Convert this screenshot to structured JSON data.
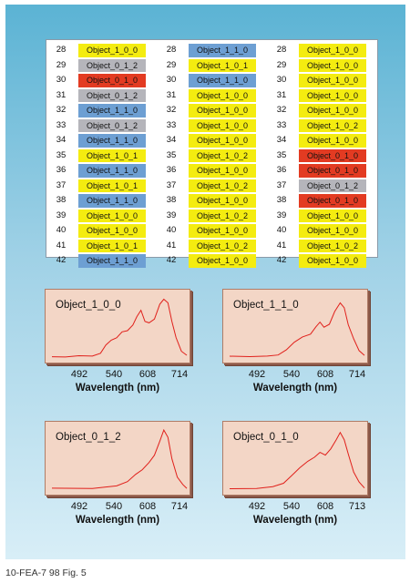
{
  "palette": {
    "yellow": "#f4ec10",
    "blue": "#6d9fd3",
    "gray": "#b5b5bb",
    "red": "#e33b22",
    "plot_bg": "#f3d6c6",
    "curve": "#e0201b"
  },
  "table": {
    "columns": [
      {
        "rows": [
          {
            "num": "28",
            "label": "Object_1_0_0",
            "color": "yellow"
          },
          {
            "num": "29",
            "label": "Object_0_1_2",
            "color": "gray"
          },
          {
            "num": "30",
            "label": "Object_0_1_0",
            "color": "red"
          },
          {
            "num": "31",
            "label": "Object_0_1_2",
            "color": "gray"
          },
          {
            "num": "32",
            "label": "Object_1_1_0",
            "color": "blue"
          },
          {
            "num": "33",
            "label": "Object_0_1_2",
            "color": "gray"
          },
          {
            "num": "34",
            "label": "Object_1_1_0",
            "color": "blue"
          },
          {
            "num": "35",
            "label": "Object_1_0_1",
            "color": "yellow"
          },
          {
            "num": "36",
            "label": "Object_1_1_0",
            "color": "blue"
          },
          {
            "num": "37",
            "label": "Object_1_0_1",
            "color": "yellow"
          },
          {
            "num": "38",
            "label": "Object_1_1_0",
            "color": "blue"
          },
          {
            "num": "39",
            "label": "Object_1_0_0",
            "color": "yellow"
          },
          {
            "num": "40",
            "label": "Object_1_0_0",
            "color": "yellow"
          },
          {
            "num": "41",
            "label": "Object_1_0_1",
            "color": "yellow"
          },
          {
            "num": "42",
            "label": "Object_1_1_0",
            "color": "blue"
          }
        ]
      },
      {
        "rows": [
          {
            "num": "28",
            "label": "Object_1_1_0",
            "color": "blue"
          },
          {
            "num": "29",
            "label": "Object_1_0_1",
            "color": "yellow"
          },
          {
            "num": "30",
            "label": "Object_1_1_0",
            "color": "blue"
          },
          {
            "num": "31",
            "label": "Object_1_0_0",
            "color": "yellow"
          },
          {
            "num": "32",
            "label": "Object_1_0_0",
            "color": "yellow"
          },
          {
            "num": "33",
            "label": "Object_1_0_0",
            "color": "yellow"
          },
          {
            "num": "34",
            "label": "Object_1_0_0",
            "color": "yellow"
          },
          {
            "num": "35",
            "label": "Object_1_0_2",
            "color": "yellow"
          },
          {
            "num": "36",
            "label": "Object_1_0_0",
            "color": "yellow"
          },
          {
            "num": "37",
            "label": "Object_1_0_2",
            "color": "yellow"
          },
          {
            "num": "38",
            "label": "Object_1_0_0",
            "color": "yellow"
          },
          {
            "num": "39",
            "label": "Object_1_0_2",
            "color": "yellow"
          },
          {
            "num": "40",
            "label": "Object_1_0_0",
            "color": "yellow"
          },
          {
            "num": "41",
            "label": "Object_1_0_2",
            "color": "yellow"
          },
          {
            "num": "42",
            "label": "Object_1_0_0",
            "color": "yellow"
          }
        ]
      },
      {
        "rows": [
          {
            "num": "28",
            "label": "Object_1_0_0",
            "color": "yellow"
          },
          {
            "num": "29",
            "label": "Object_1_0_0",
            "color": "yellow"
          },
          {
            "num": "30",
            "label": "Object_1_0_0",
            "color": "yellow"
          },
          {
            "num": "31",
            "label": "Object_1_0_0",
            "color": "yellow"
          },
          {
            "num": "32",
            "label": "Object_1_0_0",
            "color": "yellow"
          },
          {
            "num": "33",
            "label": "Object_1_0_2",
            "color": "yellow"
          },
          {
            "num": "34",
            "label": "Object_1_0_0",
            "color": "yellow"
          },
          {
            "num": "35",
            "label": "Object_0_1_0",
            "color": "red"
          },
          {
            "num": "36",
            "label": "Object_0_1_0",
            "color": "red"
          },
          {
            "num": "37",
            "label": "Object_0_1_2",
            "color": "gray"
          },
          {
            "num": "38",
            "label": "Object_0_1_0",
            "color": "red"
          },
          {
            "num": "39",
            "label": "Object_1_0_0",
            "color": "yellow"
          },
          {
            "num": "40",
            "label": "Object_1_0_0",
            "color": "yellow"
          },
          {
            "num": "41",
            "label": "Object_1_0_2",
            "color": "yellow"
          },
          {
            "num": "42",
            "label": "Object_1_0_0",
            "color": "yellow"
          }
        ]
      }
    ]
  },
  "spectra": [
    {
      "object_label": "Object_1_0_0",
      "ticks": [
        "492",
        "540",
        "608",
        "714"
      ],
      "xlabel": "Wavelength (nm)",
      "curve": [
        [
          0.0,
          0.02
        ],
        [
          0.1,
          0.02
        ],
        [
          0.2,
          0.03
        ],
        [
          0.3,
          0.04
        ],
        [
          0.36,
          0.08
        ],
        [
          0.4,
          0.2
        ],
        [
          0.44,
          0.3
        ],
        [
          0.48,
          0.32
        ],
        [
          0.52,
          0.42
        ],
        [
          0.56,
          0.45
        ],
        [
          0.6,
          0.52
        ],
        [
          0.63,
          0.68
        ],
        [
          0.66,
          0.76
        ],
        [
          0.69,
          0.6
        ],
        [
          0.72,
          0.56
        ],
        [
          0.76,
          0.64
        ],
        [
          0.8,
          0.86
        ],
        [
          0.83,
          0.96
        ],
        [
          0.86,
          0.88
        ],
        [
          0.89,
          0.6
        ],
        [
          0.92,
          0.32
        ],
        [
          0.96,
          0.12
        ],
        [
          1.0,
          0.04
        ]
      ]
    },
    {
      "object_label": "Object_1_1_0",
      "ticks": [
        "492",
        "540",
        "608",
        "714"
      ],
      "xlabel": "Wavelength (nm)",
      "curve": [
        [
          0.0,
          0.02
        ],
        [
          0.15,
          0.02
        ],
        [
          0.28,
          0.03
        ],
        [
          0.36,
          0.06
        ],
        [
          0.42,
          0.14
        ],
        [
          0.48,
          0.26
        ],
        [
          0.54,
          0.34
        ],
        [
          0.6,
          0.38
        ],
        [
          0.64,
          0.5
        ],
        [
          0.67,
          0.58
        ],
        [
          0.7,
          0.5
        ],
        [
          0.74,
          0.55
        ],
        [
          0.78,
          0.74
        ],
        [
          0.82,
          0.9
        ],
        [
          0.85,
          0.8
        ],
        [
          0.88,
          0.55
        ],
        [
          0.92,
          0.3
        ],
        [
          0.96,
          0.12
        ],
        [
          1.0,
          0.05
        ]
      ]
    },
    {
      "object_label": "Object_0_1_2",
      "ticks": [
        "492",
        "540",
        "608",
        "714"
      ],
      "xlabel": "Wavelength (nm)",
      "curve": [
        [
          0.0,
          0.02
        ],
        [
          0.3,
          0.03
        ],
        [
          0.4,
          0.05
        ],
        [
          0.48,
          0.08
        ],
        [
          0.56,
          0.14
        ],
        [
          0.62,
          0.26
        ],
        [
          0.67,
          0.34
        ],
        [
          0.72,
          0.44
        ],
        [
          0.76,
          0.56
        ],
        [
          0.8,
          0.8
        ],
        [
          0.83,
          0.96
        ],
        [
          0.86,
          0.86
        ],
        [
          0.89,
          0.5
        ],
        [
          0.93,
          0.22
        ],
        [
          0.97,
          0.08
        ],
        [
          1.0,
          0.04
        ]
      ]
    },
    {
      "object_label": "Object_0_1_0",
      "ticks": [
        "492",
        "540",
        "608",
        "713"
      ],
      "xlabel": "Wavelength (nm)",
      "curve": [
        [
          0.0,
          0.02
        ],
        [
          0.2,
          0.03
        ],
        [
          0.32,
          0.05
        ],
        [
          0.4,
          0.12
        ],
        [
          0.46,
          0.24
        ],
        [
          0.52,
          0.36
        ],
        [
          0.58,
          0.46
        ],
        [
          0.63,
          0.52
        ],
        [
          0.67,
          0.62
        ],
        [
          0.71,
          0.56
        ],
        [
          0.75,
          0.66
        ],
        [
          0.79,
          0.82
        ],
        [
          0.82,
          0.92
        ],
        [
          0.85,
          0.82
        ],
        [
          0.88,
          0.58
        ],
        [
          0.92,
          0.3
        ],
        [
          0.96,
          0.12
        ],
        [
          1.0,
          0.04
        ]
      ]
    }
  ],
  "caption": "10-FEA-7 98 Fig. 5"
}
